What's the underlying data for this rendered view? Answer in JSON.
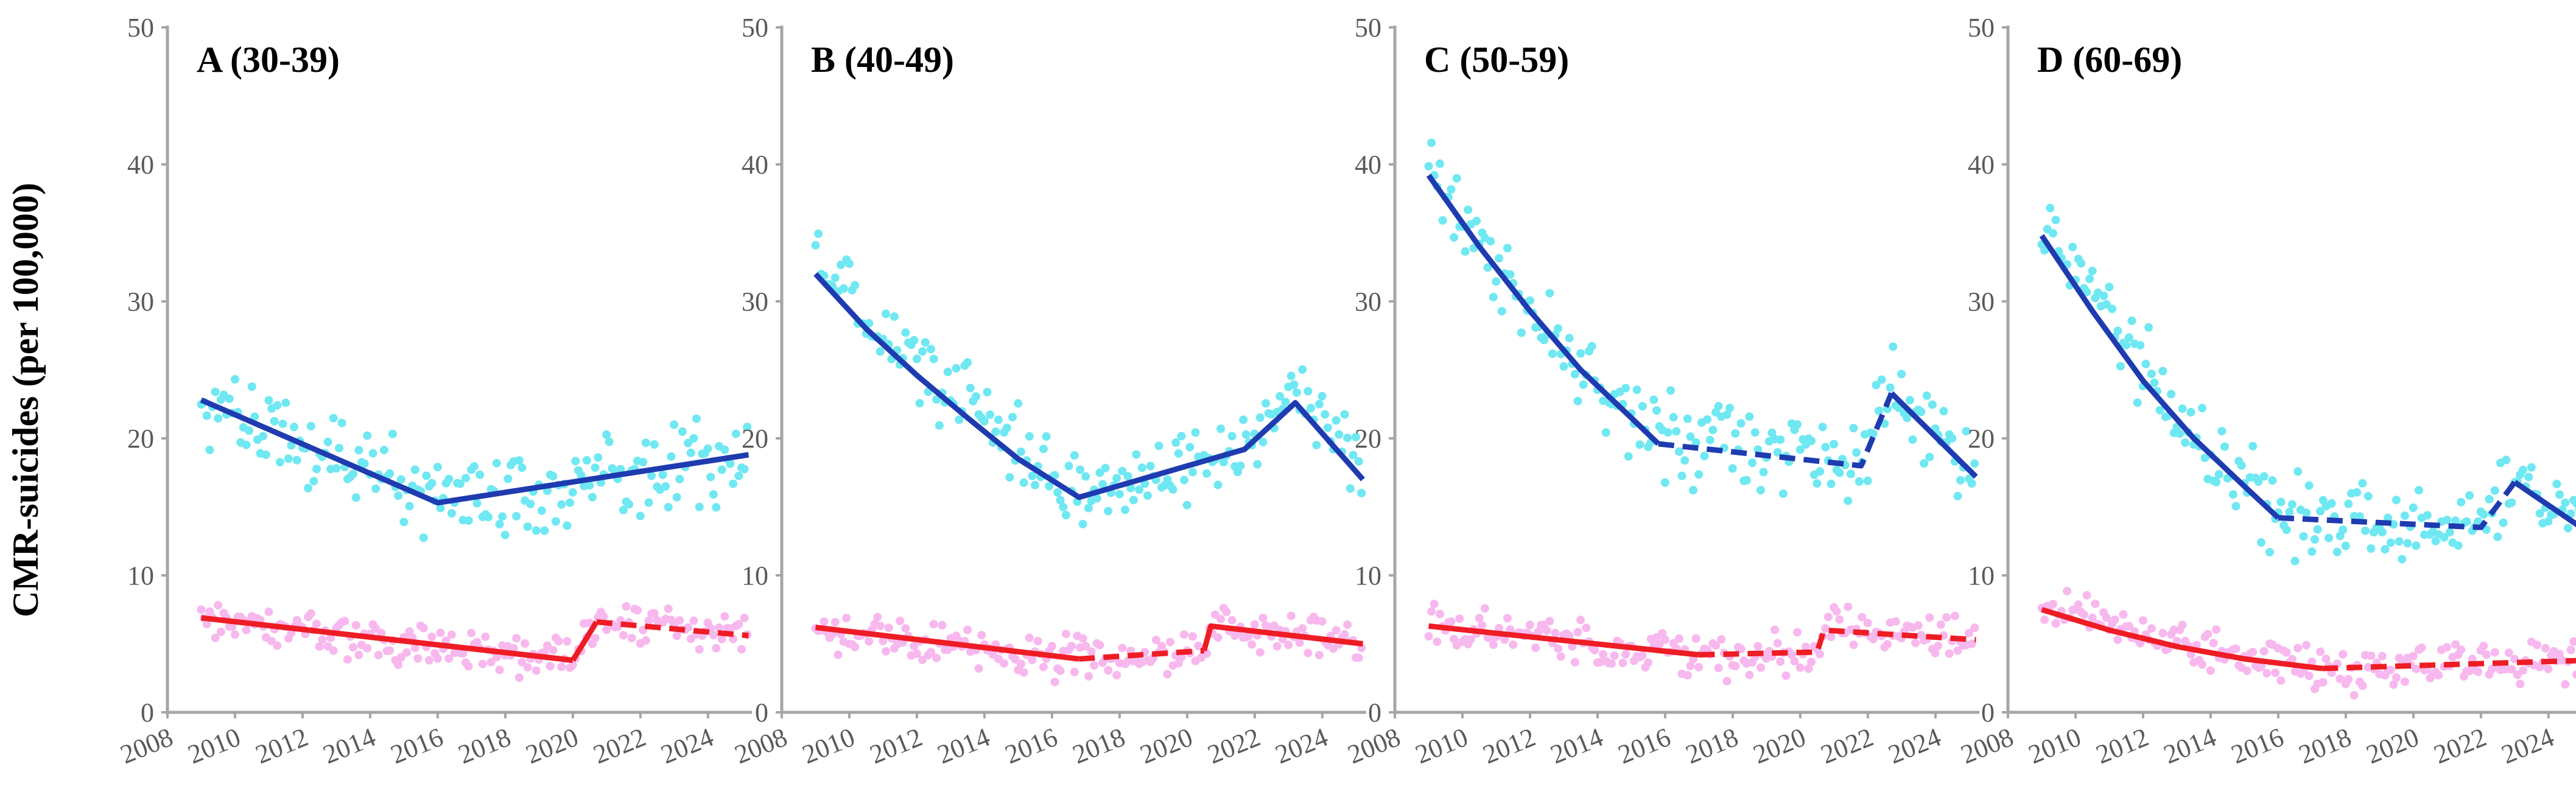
{
  "figure": {
    "ylabel": "CMR-suicides (per 100,000)"
  },
  "colors": {
    "blue_points": "#6fe8f2",
    "blue_line": "#1f3bb0",
    "red_points": "#f7b8ee",
    "red_line": "#ee1c24",
    "axis": "#a6a6a6",
    "tick_text": "#595959"
  },
  "chart_data": [
    {
      "type": "scatter",
      "title": "A (30-39)",
      "xlim": [
        2008,
        2025.3
      ],
      "ylim": [
        0,
        50
      ],
      "xticks": [
        "2008",
        "2010",
        "2012",
        "2014",
        "2016",
        "2018",
        "2020",
        "2022",
        "2024"
      ],
      "yticks": [
        "0",
        "10",
        "20",
        "30",
        "40",
        "50"
      ],
      "series": [
        {
          "name": "blue",
          "points": {
            "start": 2009,
            "step": 0.0833,
            "seed": 11,
            "noise": 2.2,
            "trend": [
              [
                2009,
                23.0
              ],
              [
                2016,
                15.3
              ],
              [
                2025.2,
                18.8
              ]
            ]
          },
          "fit": [
            {
              "style": "solid",
              "points": [
                [
                  2009,
                  22.8
                ],
                [
                  2016,
                  15.3
                ],
                [
                  2025.2,
                  18.8
                ]
              ]
            }
          ]
        },
        {
          "name": "red",
          "points": {
            "start": 2009,
            "step": 0.0833,
            "seed": 12,
            "noise": 1.1,
            "trend": [
              [
                2009,
                6.9
              ],
              [
                2020,
                3.8
              ],
              [
                2020.7,
                6.6
              ],
              [
                2025.2,
                5.6
              ]
            ]
          },
          "fit": [
            {
              "style": "solid",
              "points": [
                [
                  2009,
                  6.9
                ],
                [
                  2020,
                  3.8
                ]
              ]
            },
            {
              "style": "solid",
              "points": [
                [
                  2020,
                  3.8
                ],
                [
                  2020.7,
                  6.6
                ]
              ]
            },
            {
              "style": "dashed",
              "points": [
                [
                  2020.7,
                  6.6
                ],
                [
                  2025.2,
                  5.6
                ]
              ]
            }
          ]
        }
      ]
    },
    {
      "type": "scatter",
      "title": "B (40-49)",
      "xlim": [
        2008,
        2025.3
      ],
      "ylim": [
        0,
        50
      ],
      "xticks": [
        "2008",
        "2010",
        "2012",
        "2014",
        "2016",
        "2018",
        "2020",
        "2022",
        "2024"
      ],
      "yticks": [
        "0",
        "10",
        "20",
        "30",
        "40",
        "50"
      ],
      "series": [
        {
          "name": "blue",
          "points": {
            "start": 2009,
            "step": 0.0833,
            "seed": 21,
            "noise": 2.0,
            "trend": [
              [
                2009,
                33.0
              ],
              [
                2012,
                25.5
              ],
              [
                2016.8,
                15.7
              ],
              [
                2021.7,
                19.2
              ],
              [
                2023.2,
                23.5
              ],
              [
                2025.2,
                17.5
              ]
            ]
          },
          "fit": [
            {
              "style": "solid",
              "points": [
                [
                  2009,
                  32.0
                ],
                [
                  2010.5,
                  28.0
                ],
                [
                  2012,
                  24.6
                ],
                [
                  2013.5,
                  21.5
                ],
                [
                  2015,
                  18.5
                ],
                [
                  2016.8,
                  15.7
                ],
                [
                  2021.7,
                  19.2
                ],
                [
                  2023.2,
                  22.6
                ],
                [
                  2025.2,
                  17.0
                ]
              ]
            }
          ]
        },
        {
          "name": "red",
          "points": {
            "start": 2009,
            "step": 0.0833,
            "seed": 22,
            "noise": 1.1,
            "trend": [
              [
                2009,
                6.2
              ],
              [
                2016.8,
                3.9
              ],
              [
                2020.5,
                4.6
              ],
              [
                2020.7,
                6.3
              ],
              [
                2025.2,
                5.0
              ]
            ]
          },
          "fit": [
            {
              "style": "solid",
              "points": [
                [
                  2009,
                  6.2
                ],
                [
                  2016.8,
                  3.9
                ]
              ]
            },
            {
              "style": "dashed",
              "points": [
                [
                  2016.8,
                  3.9
                ],
                [
                  2020.5,
                  4.5
                ]
              ]
            },
            {
              "style": "solid",
              "points": [
                [
                  2020.5,
                  4.5
                ],
                [
                  2020.7,
                  6.3
                ],
                [
                  2025.2,
                  5.0
                ]
              ]
            }
          ]
        }
      ]
    },
    {
      "type": "scatter",
      "title": "C (50-59)",
      "xlim": [
        2008,
        2025.3
      ],
      "ylim": [
        0,
        50
      ],
      "xticks": [
        "2008",
        "2010",
        "2012",
        "2014",
        "2016",
        "2018",
        "2020",
        "2022",
        "2024"
      ],
      "yticks": [
        "0",
        "10",
        "20",
        "30",
        "40",
        "50"
      ],
      "series": [
        {
          "name": "blue",
          "points": {
            "start": 2009,
            "step": 0.0833,
            "seed": 31,
            "noise": 2.2,
            "trend": [
              [
                2009,
                40.0
              ],
              [
                2011,
                32.0
              ],
              [
                2013,
                26.0
              ],
              [
                2015.8,
                19.8
              ],
              [
                2021.8,
                18.0
              ],
              [
                2022.7,
                23.5
              ],
              [
                2025.2,
                17.5
              ]
            ]
          },
          "fit": [
            {
              "style": "solid",
              "points": [
                [
                  2009,
                  39.2
                ],
                [
                  2010.5,
                  34.0
                ],
                [
                  2012,
                  29.3
                ],
                [
                  2013.5,
                  25.0
                ],
                [
                  2015,
                  21.5
                ],
                [
                  2015.8,
                  19.6
                ]
              ]
            },
            {
              "style": "dashed",
              "points": [
                [
                  2015.8,
                  19.6
                ],
                [
                  2021.8,
                  18.0
                ],
                [
                  2022.7,
                  23.3
                ]
              ]
            },
            {
              "style": "solid",
              "points": [
                [
                  2022.7,
                  23.3
                ],
                [
                  2025.2,
                  17.2
                ]
              ]
            }
          ]
        },
        {
          "name": "red",
          "points": {
            "start": 2009,
            "step": 0.0833,
            "seed": 32,
            "noise": 1.1,
            "trend": [
              [
                2009,
                6.3
              ],
              [
                2017,
                4.2
              ],
              [
                2020.5,
                4.5
              ],
              [
                2020.7,
                6.0
              ],
              [
                2025.2,
                5.3
              ]
            ]
          },
          "fit": [
            {
              "style": "solid",
              "points": [
                [
                  2009,
                  6.3
                ],
                [
                  2017,
                  4.2
                ]
              ]
            },
            {
              "style": "dashed",
              "points": [
                [
                  2017,
                  4.2
                ],
                [
                  2020.5,
                  4.4
                ],
                [
                  2020.7,
                  6.0
                ],
                [
                  2025.2,
                  5.3
                ]
              ]
            }
          ]
        }
      ]
    },
    {
      "type": "scatter",
      "title": "D (60-69)",
      "xlim": [
        2008,
        2025.3
      ],
      "ylim": [
        0,
        50
      ],
      "xticks": [
        "2008",
        "2010",
        "2012",
        "2014",
        "2016",
        "2018",
        "2020",
        "2022",
        "2024"
      ],
      "yticks": [
        "0",
        "10",
        "20",
        "30",
        "40",
        "50"
      ],
      "series": [
        {
          "name": "blue",
          "points": {
            "start": 2009,
            "step": 0.0833,
            "seed": 41,
            "noise": 2.0,
            "trend": [
              [
                2009,
                35.5
              ],
              [
                2011,
                28.5
              ],
              [
                2013,
                21.5
              ],
              [
                2016,
                14.2
              ],
              [
                2022,
                13.5
              ],
              [
                2023,
                17.0
              ],
              [
                2025.2,
                13.3
              ]
            ]
          },
          "fit": [
            {
              "style": "solid",
              "points": [
                [
                  2009,
                  34.8
                ],
                [
                  2010.5,
                  29.3
                ],
                [
                  2012,
                  24.2
                ],
                [
                  2013.5,
                  20.0
                ],
                [
                  2015,
                  16.5
                ],
                [
                  2016,
                  14.2
                ]
              ]
            },
            {
              "style": "dashed",
              "points": [
                [
                  2016,
                  14.2
                ],
                [
                  2022,
                  13.5
                ],
                [
                  2023,
                  16.8
                ]
              ]
            },
            {
              "style": "solid",
              "points": [
                [
                  2023,
                  16.8
                ],
                [
                  2025.2,
                  13.1
                ]
              ]
            }
          ]
        },
        {
          "name": "red",
          "points": {
            "start": 2009,
            "step": 0.0833,
            "seed": 42,
            "noise": 1.1,
            "trend": [
              [
                2009,
                7.5
              ],
              [
                2013,
                4.8
              ],
              [
                2017.3,
                3.2
              ],
              [
                2025.2,
                3.8
              ]
            ]
          },
          "fit": [
            {
              "style": "solid",
              "points": [
                [
                  2009,
                  7.5
                ],
                [
                  2011,
                  6.0
                ],
                [
                  2013,
                  4.8
                ],
                [
                  2015,
                  3.9
                ],
                [
                  2017.3,
                  3.2
                ]
              ]
            },
            {
              "style": "dashed",
              "points": [
                [
                  2017.3,
                  3.2
                ],
                [
                  2025.2,
                  3.8
                ]
              ]
            }
          ]
        }
      ]
    }
  ]
}
